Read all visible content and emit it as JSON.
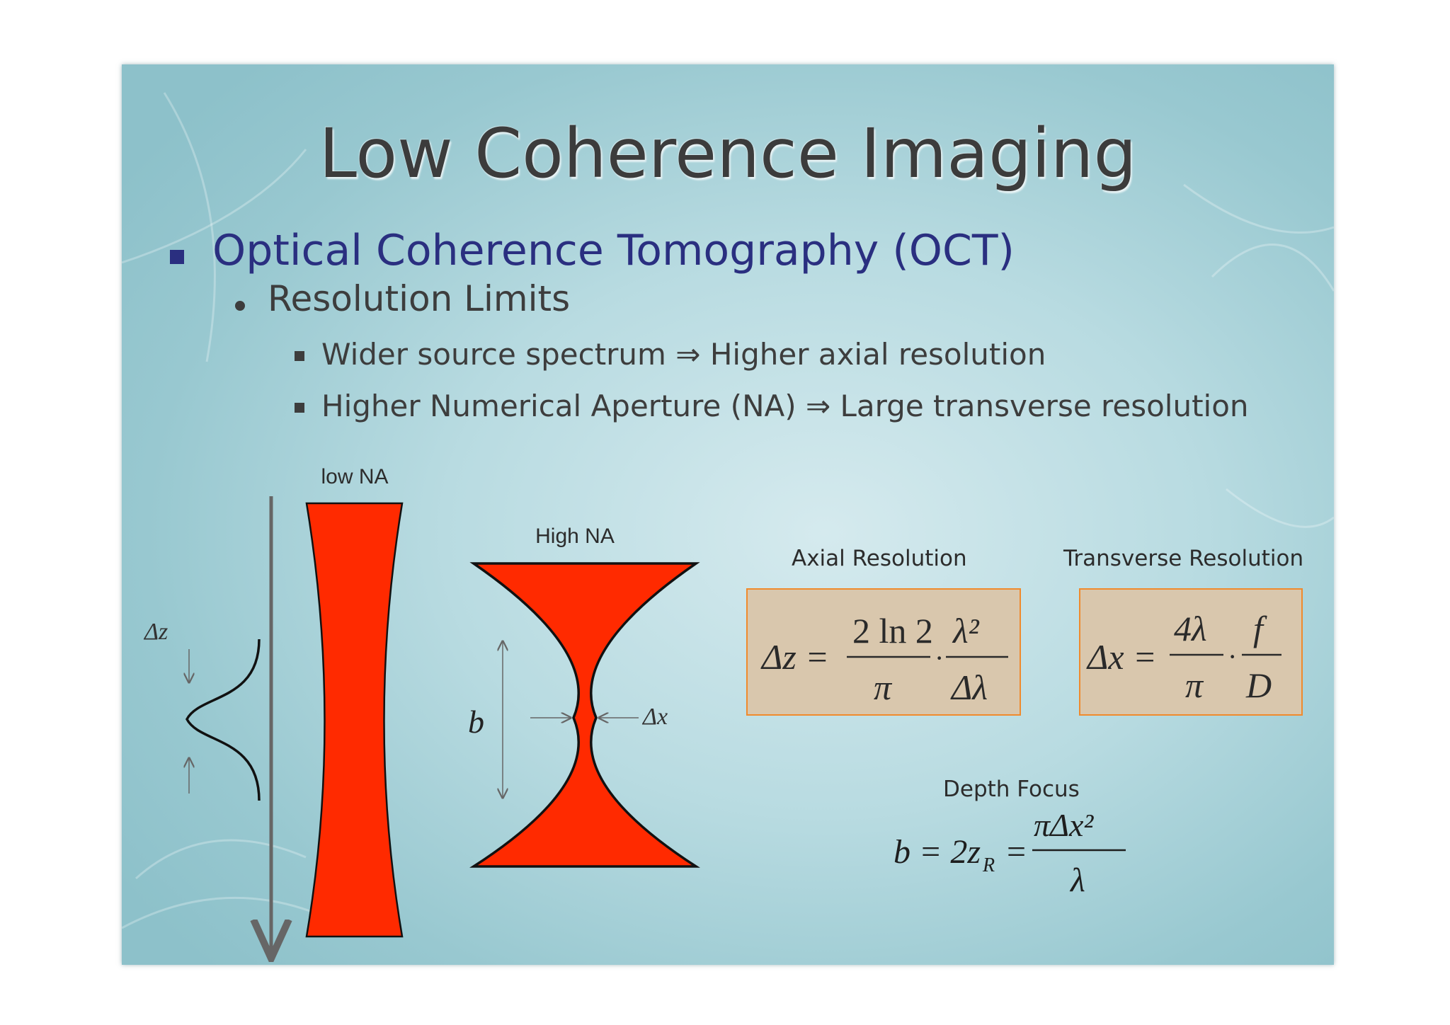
{
  "slide": {
    "title": "Low Coherence Imaging",
    "bullet_level1": "Optical Coherence Tomography (OCT)",
    "bullet_level2": "Resolution Limits",
    "bullet_level3": [
      "Wider source spectrum ⇒ Higher axial resolution",
      "Higher Numerical Aperture (NA) ⇒ Large transverse resolution"
    ]
  },
  "diagram": {
    "low_na_label": "low NA",
    "high_na_label": "High NA",
    "delta_z_label": "Δz",
    "b_label": "b",
    "delta_x_label": "Δx",
    "beam_color": "#ff2a00"
  },
  "formulas": {
    "axial": {
      "label": "Axial Resolution",
      "lhs": "Δz =",
      "frac1_num": "2 ln 2",
      "frac1_den": "π",
      "dot": "·",
      "frac2_num": "λ²",
      "frac2_den": "Δλ"
    },
    "transverse": {
      "label": "Transverse Resolution",
      "lhs": "Δx =",
      "frac1_num": "4λ",
      "frac1_den": "π",
      "dot": "·",
      "frac2_num": "f",
      "frac2_den": "D"
    },
    "depth": {
      "label": "Depth Focus",
      "lhs": "b = 2z",
      "lhs_sub": "R",
      "eq": "=",
      "frac_num": "πΔx²",
      "frac_den": "λ"
    },
    "box_fill": "#d9c7ad",
    "box_border": "#f08a2c"
  }
}
